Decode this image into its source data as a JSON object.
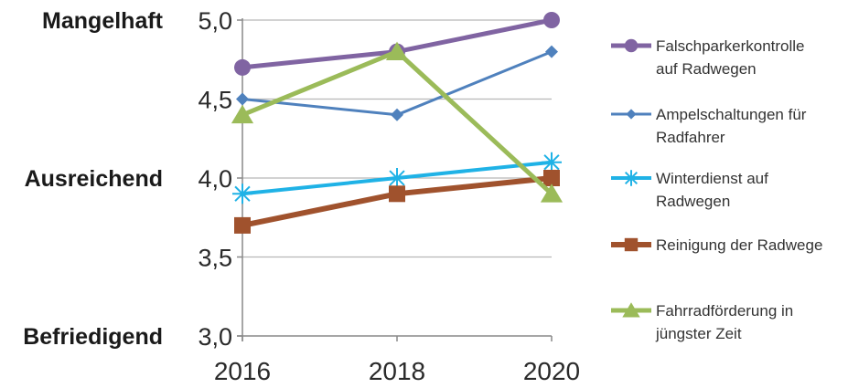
{
  "chart_data": {
    "type": "line",
    "x": [
      "2016",
      "2018",
      "2020"
    ],
    "ylim": [
      3.0,
      5.0
    ],
    "yticks": [
      "3,0",
      "3,5",
      "4,0",
      "4,5",
      "5,0"
    ],
    "ytick_values": [
      3.0,
      3.5,
      4.0,
      4.5,
      5.0
    ],
    "grade_labels": [
      {
        "value": 5.0,
        "text": "Mangelhaft"
      },
      {
        "value": 4.0,
        "text": "Ausreichend"
      },
      {
        "value": 3.0,
        "text": "Befriedigend"
      }
    ],
    "grid": "horizontal",
    "legend_position": "right",
    "series": [
      {
        "name": [
          "Falschparkerkontrolle",
          "auf Radwegen"
        ],
        "values": [
          4.7,
          4.8,
          5.0
        ],
        "color": "#8064A2",
        "marker": "circle"
      },
      {
        "name": [
          "Ampelschaltungen für",
          "Radfahrer"
        ],
        "values": [
          4.5,
          4.4,
          4.8
        ],
        "color": "#4F81BD",
        "marker": "diamond"
      },
      {
        "name": [
          "Winterdienst auf",
          "Radwegen"
        ],
        "values": [
          3.9,
          4.0,
          4.1
        ],
        "color": "#1FB2E6",
        "marker": "star"
      },
      {
        "name": [
          "Reinigung der Radwege"
        ],
        "values": [
          3.7,
          3.9,
          4.0
        ],
        "color": "#A0522D",
        "marker": "square"
      },
      {
        "name": [
          "Fahrradförderung in",
          "jüngster Zeit"
        ],
        "values": [
          4.4,
          4.8,
          3.9
        ],
        "color": "#9BBB59",
        "marker": "triangle"
      }
    ]
  }
}
